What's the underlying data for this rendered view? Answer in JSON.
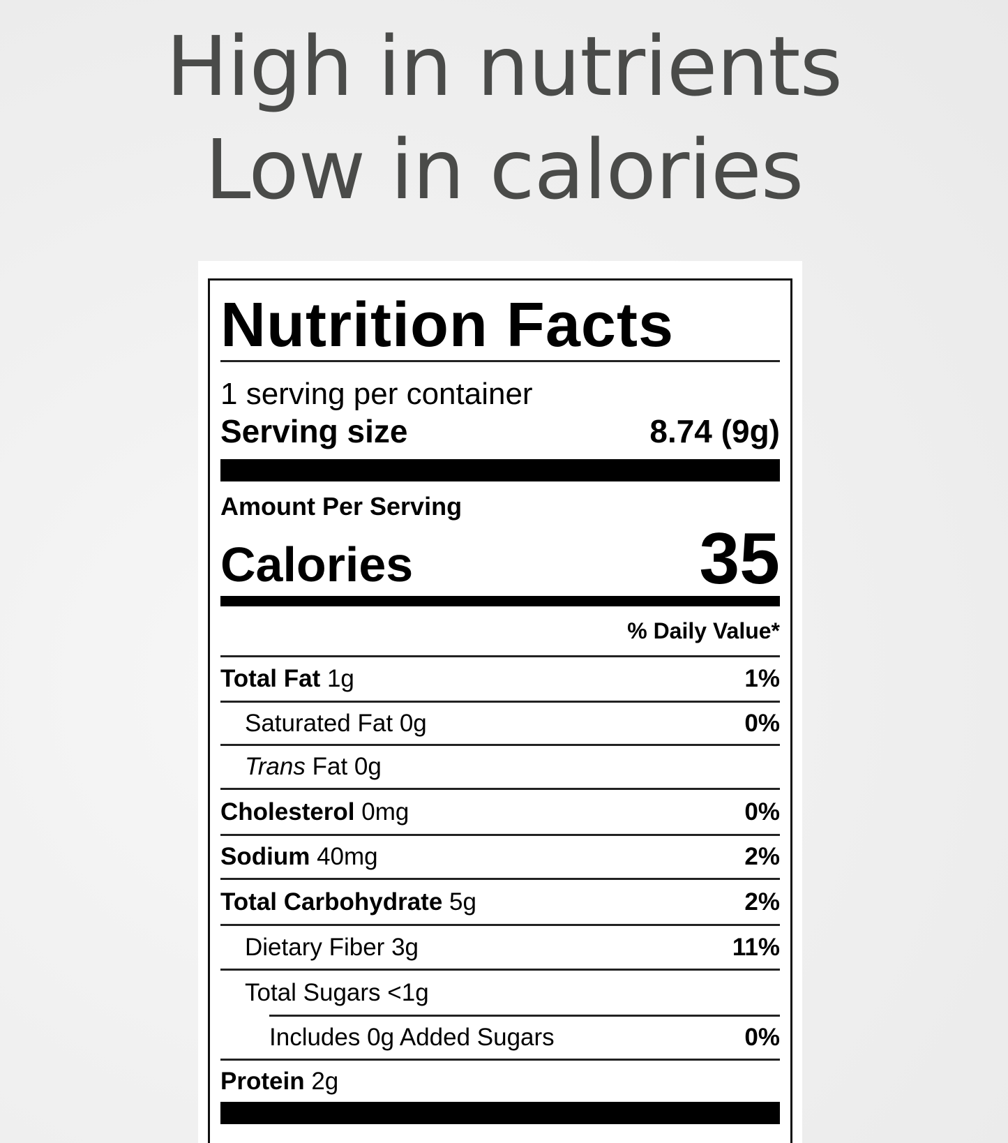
{
  "headline": {
    "line1": "High in nutrients",
    "line2": "Low in calories"
  },
  "label": {
    "title": "Nutrition Facts",
    "servings_per_container": "1 serving per container",
    "serving_size_label": "Serving size",
    "serving_size_value": "8.74 (9g)",
    "amount_per_serving": "Amount Per Serving",
    "calories_label": "Calories",
    "calories_value": "35",
    "daily_value_header": "% Daily Value*",
    "rows": [
      {
        "name": "Total Fat",
        "amount": "1g",
        "dv": "1%"
      },
      {
        "name": "Saturated Fat",
        "amount": "0g",
        "dv": "0%"
      },
      {
        "name": "Trans",
        "name_rest": "Fat",
        "amount": "0g",
        "dv": ""
      },
      {
        "name": "Cholesterol",
        "amount": "0mg",
        "dv": "0%"
      },
      {
        "name": "Sodium",
        "amount": "40mg",
        "dv": "2%"
      },
      {
        "name": "Total Carbohydrate",
        "amount": "5g",
        "dv": "2%"
      },
      {
        "name": "Dietary Fiber",
        "amount": "3g",
        "dv": "11%"
      },
      {
        "name": "Total Sugars",
        "amount": "<1g",
        "dv": ""
      },
      {
        "name": "Includes",
        "amount": "0g",
        "name_rest": "Added Sugars",
        "dv": "0%"
      },
      {
        "name": "Protein",
        "amount": "2g",
        "dv": ""
      }
    ]
  },
  "colors": {
    "headline_text": "#4a4b49",
    "label_ink": "#000000",
    "background": "#efefef"
  }
}
